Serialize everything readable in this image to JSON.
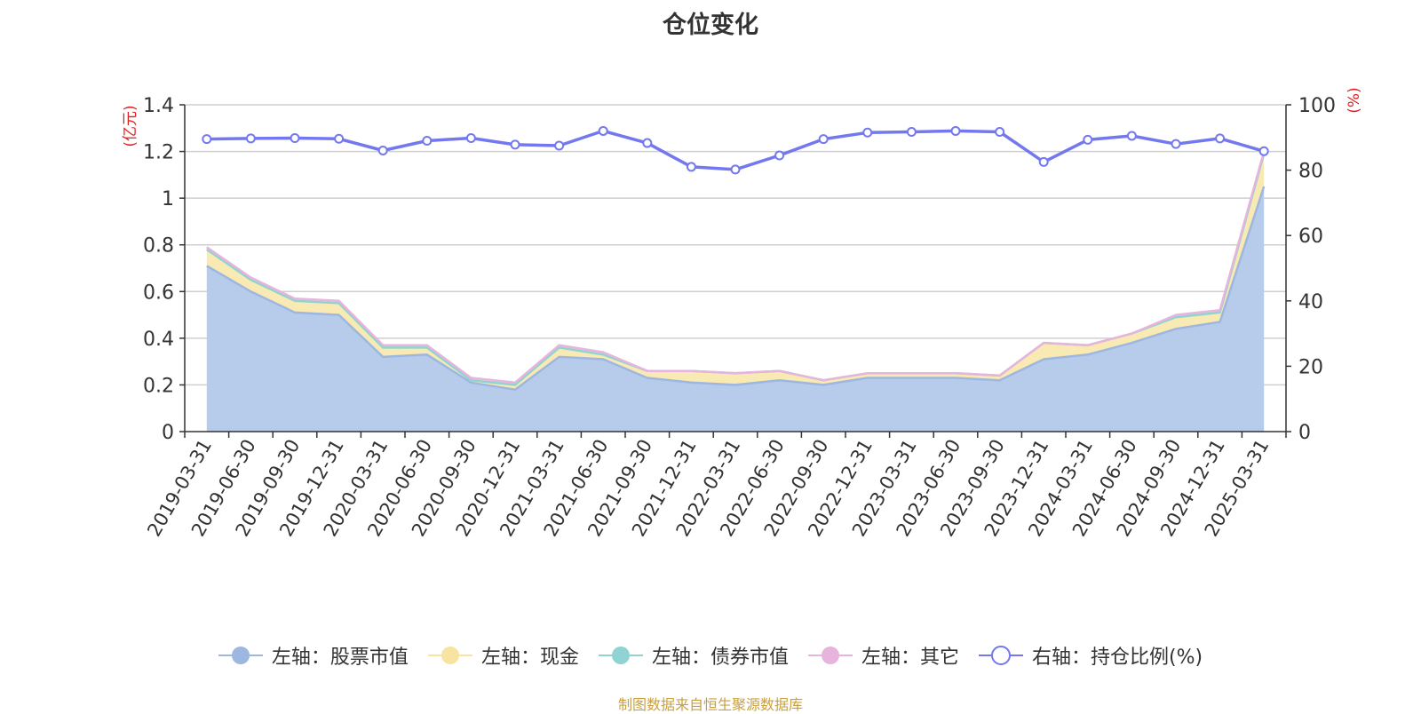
{
  "chart_data": {
    "type": "area",
    "title": "仓位变化",
    "left_axis_unit": "(亿元)",
    "right_axis_unit": "(%)",
    "left_ylim": [
      0,
      1.4
    ],
    "left_ticks": [
      "0",
      "0.2",
      "0.4",
      "0.6",
      "0.8",
      "1",
      "1.2",
      "1.4"
    ],
    "right_ylim": [
      0,
      100
    ],
    "right_ticks": [
      "0",
      "20",
      "40",
      "60",
      "80",
      "100"
    ],
    "categories": [
      "2019-03-31",
      "2019-06-30",
      "2019-09-30",
      "2019-12-31",
      "2020-03-31",
      "2020-06-30",
      "2020-09-30",
      "2020-12-31",
      "2021-03-31",
      "2021-06-30",
      "2021-09-30",
      "2021-12-31",
      "2022-03-31",
      "2022-06-30",
      "2022-09-30",
      "2022-12-31",
      "2023-03-31",
      "2023-06-30",
      "2023-09-30",
      "2023-12-31",
      "2024-03-31",
      "2024-06-30",
      "2024-09-30",
      "2024-12-31",
      "2025-03-31"
    ],
    "series": [
      {
        "name": "左轴：股票市值",
        "axis": "left",
        "stack": true,
        "color": "#9db7e0",
        "values": [
          0.71,
          0.6,
          0.51,
          0.5,
          0.32,
          0.33,
          0.21,
          0.18,
          0.32,
          0.31,
          0.23,
          0.21,
          0.2,
          0.22,
          0.2,
          0.23,
          0.23,
          0.23,
          0.22,
          0.31,
          0.33,
          0.38,
          0.44,
          0.47,
          1.05
        ]
      },
      {
        "name": "左轴：现金",
        "axis": "left",
        "stack": true,
        "color": "#f7e4a0",
        "values": [
          0.07,
          0.05,
          0.05,
          0.05,
          0.04,
          0.03,
          0.01,
          0.02,
          0.04,
          0.02,
          0.03,
          0.05,
          0.05,
          0.04,
          0.02,
          0.02,
          0.02,
          0.02,
          0.02,
          0.07,
          0.04,
          0.04,
          0.05,
          0.04,
          0.14
        ]
      },
      {
        "name": "左轴：债券市值",
        "axis": "left",
        "stack": true,
        "color": "#8fd3d3",
        "values": [
          0,
          0,
          0,
          0,
          0,
          0,
          0,
          0,
          0,
          0,
          0,
          0,
          0,
          0,
          0,
          0,
          0,
          0,
          0,
          0,
          0,
          0,
          0,
          0,
          0
        ]
      },
      {
        "name": "左轴：其它",
        "axis": "left",
        "stack": true,
        "color": "#e6b4dc",
        "values": [
          0.01,
          0.01,
          0.01,
          0.01,
          0.01,
          0.01,
          0.01,
          0.01,
          0.01,
          0.01,
          0.0,
          0.0,
          0.0,
          0.0,
          0.0,
          0.0,
          0.0,
          0.0,
          0.0,
          0.0,
          0.0,
          0.0,
          0.01,
          0.01,
          0.01
        ]
      },
      {
        "name": "右轴：持仓比例(%)",
        "axis": "right",
        "stack": false,
        "color": "#7378ee",
        "values": [
          89.5,
          89.7,
          89.8,
          89.6,
          86.0,
          89.0,
          89.8,
          87.8,
          87.5,
          92.0,
          88.3,
          81.0,
          80.2,
          84.5,
          89.5,
          91.5,
          91.7,
          92.0,
          91.7,
          82.5,
          89.3,
          90.5,
          88.0,
          89.7,
          85.8
        ]
      }
    ],
    "legend_position": "bottom",
    "grid": true
  },
  "footer": "制图数据来自恒生聚源数据库"
}
